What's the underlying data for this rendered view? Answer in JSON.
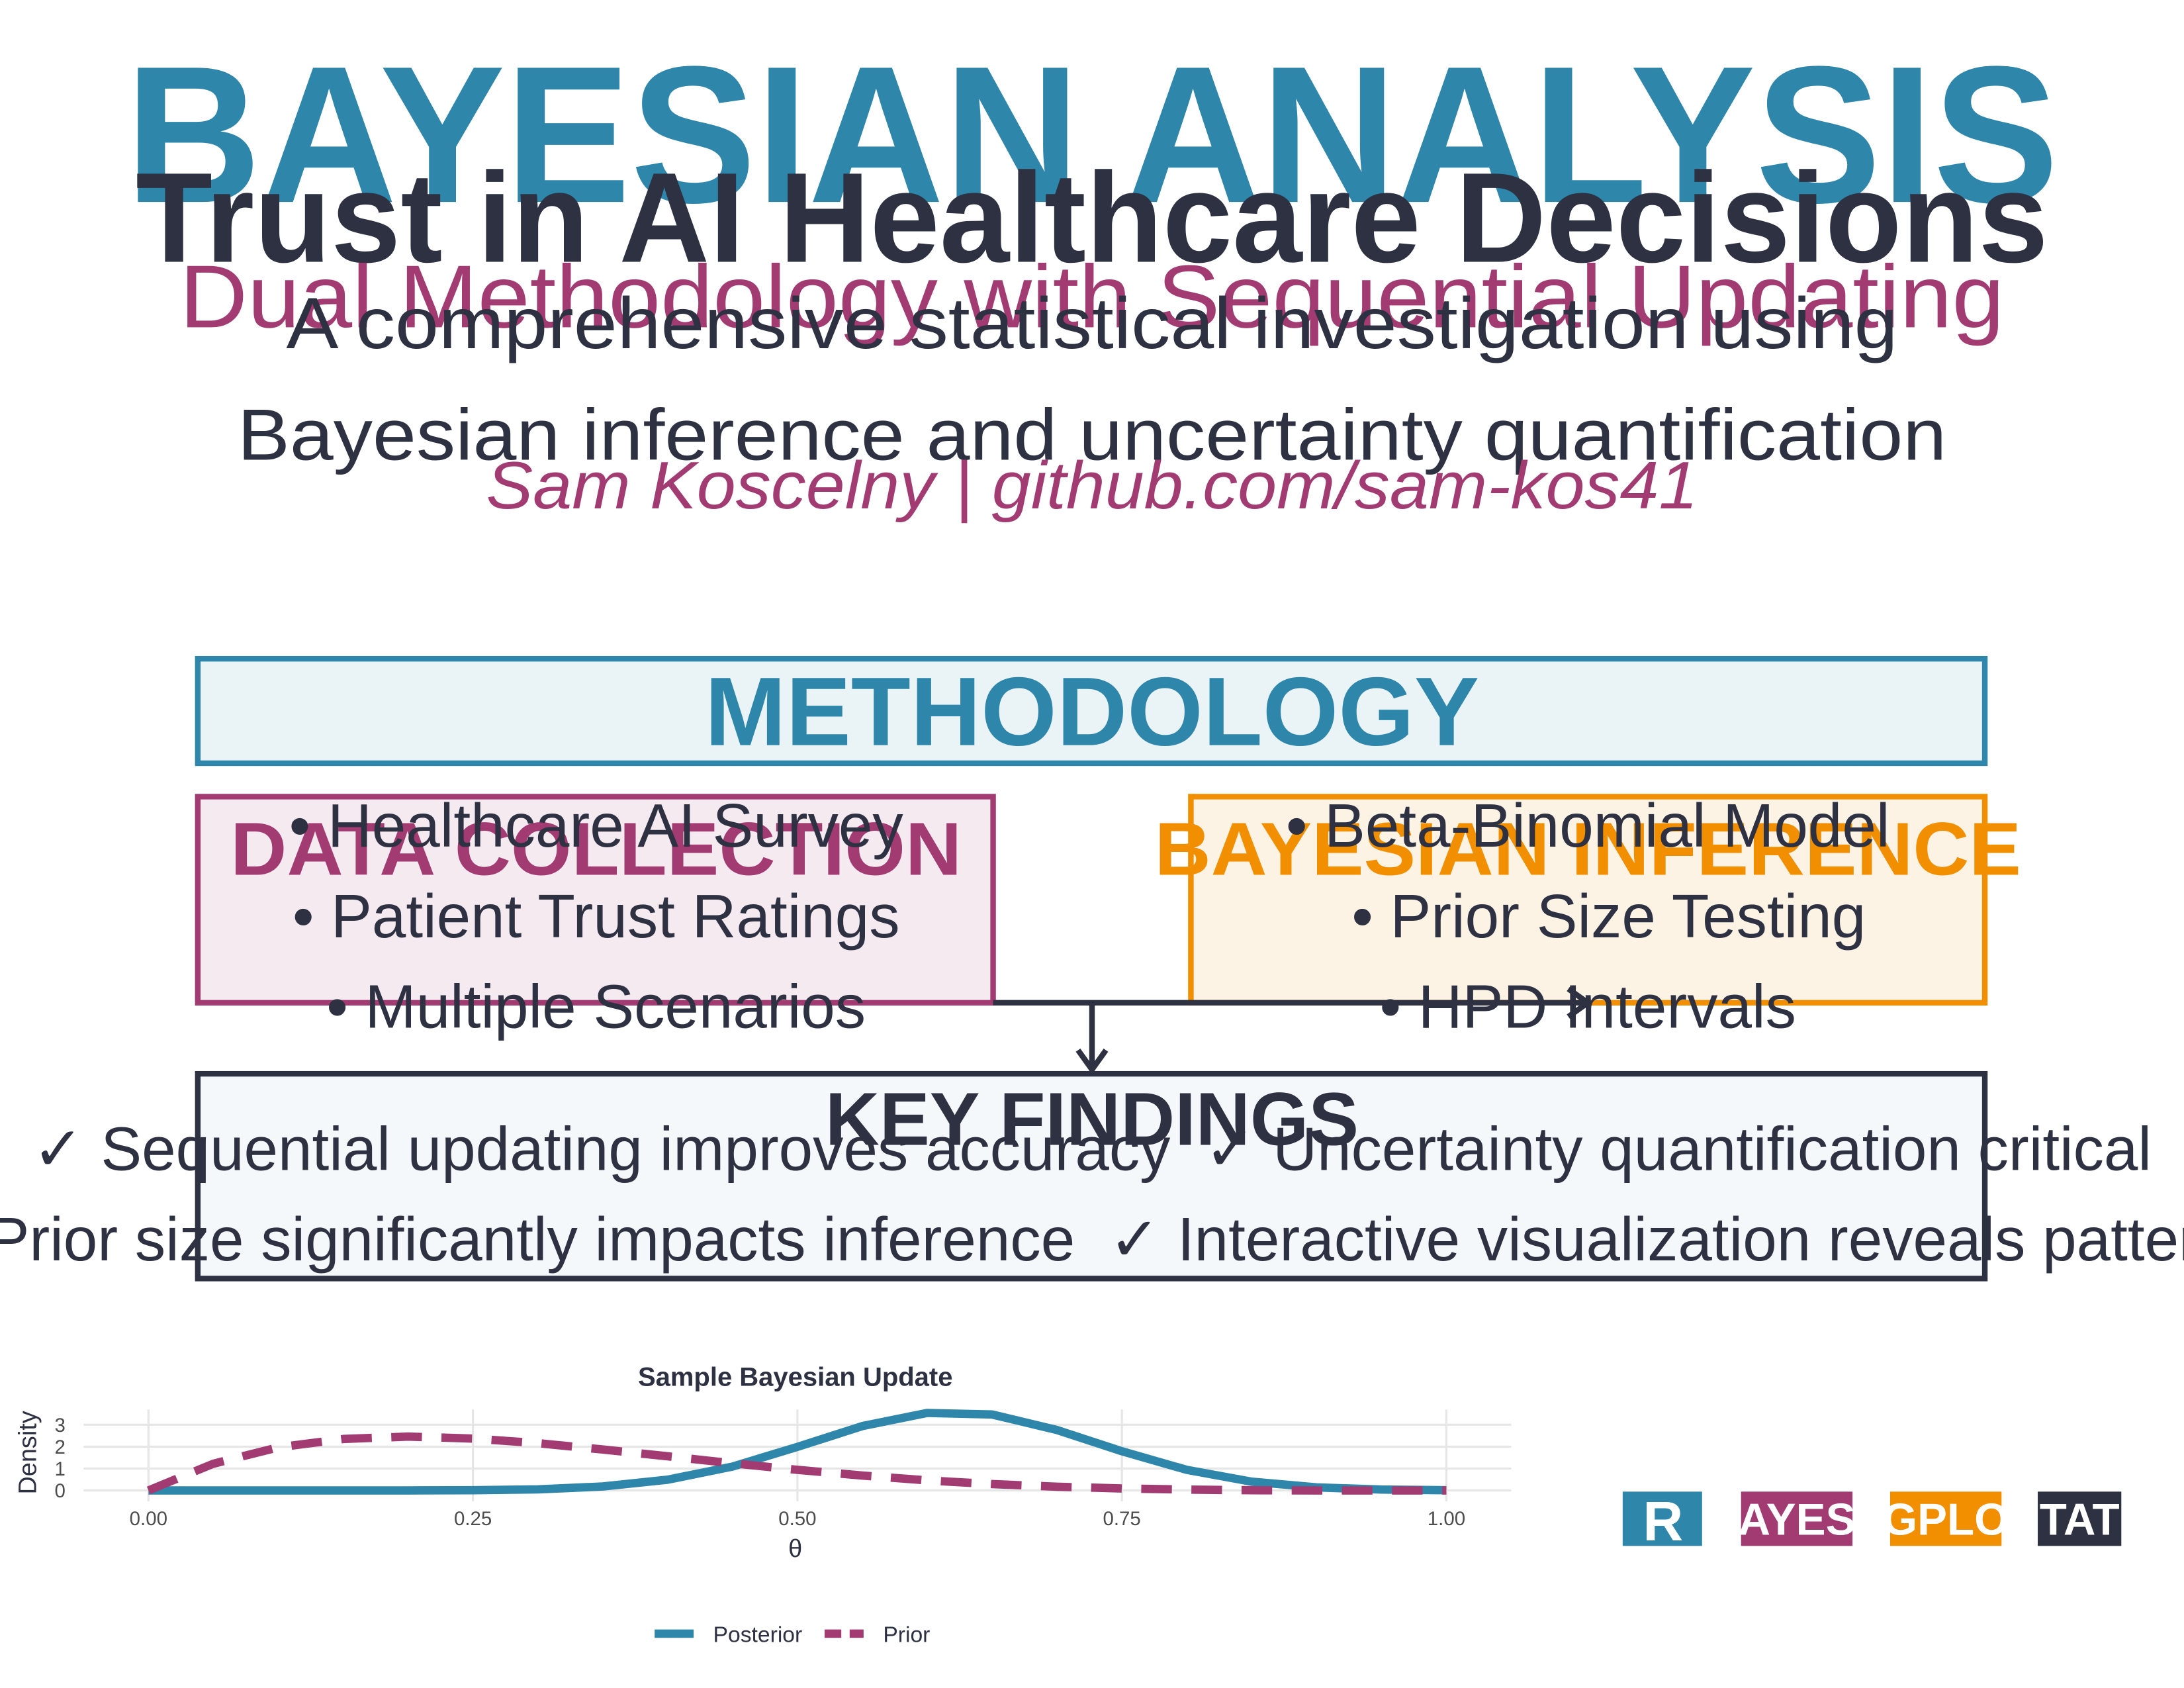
{
  "header": {
    "title": "BAYESIAN ANALYSIS",
    "subtitle": "Trust in AI Healthcare Decisions",
    "tagline": "Dual Methodology with Sequential Updating",
    "description": [
      "A comprehensive statistical investigation using",
      "Bayesian inference and uncertainty quantification"
    ],
    "author": "Sam Koscelny | github.com/sam-kos41"
  },
  "methodology": {
    "title": "METHODOLOGY"
  },
  "data_collection": {
    "title": "DATA COLLECTION",
    "items": [
      "• Healthcare AI Survey",
      "• Patient Trust Ratings",
      "• Multiple Scenarios"
    ]
  },
  "bayesian_inference": {
    "title": "BAYESIAN INFERENCE",
    "items": [
      "• Beta-Binomial Model",
      "• Prior Size Testing",
      "• HPD Intervals"
    ]
  },
  "key_findings": {
    "title": "KEY FINDINGS",
    "lines": [
      "✓ Sequential updating improves accuracy  ✓ Uncertainty quantification critical",
      "✓ Prior size significantly impacts inference  ✓ Interactive visualization reveals patterns"
    ]
  },
  "chart_data": {
    "type": "line",
    "title": "Sample Bayesian Update",
    "x_label": "θ",
    "y_label": "Density",
    "x": [
      0,
      0.05,
      0.1,
      0.15,
      0.2,
      0.25,
      0.3,
      0.35,
      0.4,
      0.45,
      0.5,
      0.55,
      0.6,
      0.65,
      0.7,
      0.75,
      0.8,
      0.85,
      0.9,
      0.95,
      1
    ],
    "series": [
      {
        "name": "Posterior",
        "color": "#2e86ab",
        "dash": false,
        "values": [
          0,
          0,
          0,
          0,
          0,
          0.01,
          0.05,
          0.18,
          0.49,
          1.09,
          1.99,
          2.94,
          3.54,
          3.47,
          2.76,
          1.79,
          0.94,
          0.4,
          0.14,
          0.04,
          0.01
        ]
      },
      {
        "name": "Prior",
        "color": "#a23b72",
        "dash": true,
        "values": [
          0,
          1.22,
          1.97,
          2.35,
          2.46,
          2.37,
          2.16,
          1.87,
          1.56,
          1.24,
          0.94,
          0.68,
          0.46,
          0.29,
          0.17,
          0.09,
          0.04,
          0.01,
          0,
          0,
          0
        ]
      }
    ],
    "xlim": [
      -0.05,
      1.05
    ],
    "ylim": [
      -0.5,
      3.7
    ],
    "xticks": [
      {
        "value": 0,
        "label": "0.00"
      },
      {
        "value": 0.25,
        "label": "0.25"
      },
      {
        "value": 0.5,
        "label": "0.50"
      },
      {
        "value": 0.75,
        "label": "0.75"
      },
      {
        "value": 1,
        "label": "1.00"
      }
    ],
    "yticks": [
      0,
      1,
      2,
      3
    ],
    "grid": true,
    "legend": "bottom"
  },
  "badges": [
    "R",
    "BAYESD",
    "GPLO",
    "TAT"
  ]
}
